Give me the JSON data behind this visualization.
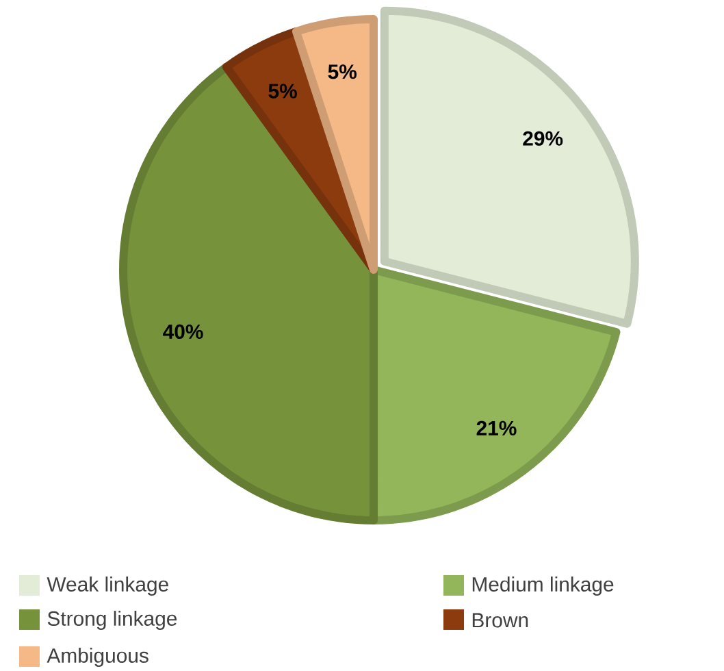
{
  "chart_data": {
    "type": "pie",
    "categories": [
      "Weak linkage",
      "Medium linkage",
      "Strong linkage",
      "Brown",
      "Ambiguous"
    ],
    "values": [
      29,
      21,
      40,
      5,
      5
    ],
    "value_labels": [
      "29%",
      "21%",
      "40%",
      "5%",
      "5%"
    ],
    "colors": [
      "#e3ecd7",
      "#92b659",
      "#76933c",
      "#8b3b0e",
      "#f4b987"
    ],
    "legend": "bottom"
  }
}
